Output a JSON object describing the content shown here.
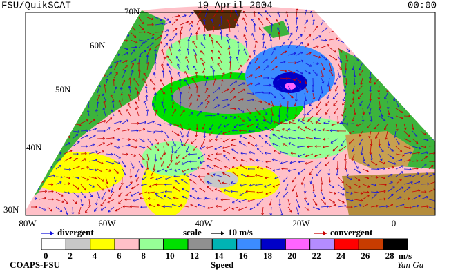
{
  "header": {
    "left": "FSU/QuikSCAT",
    "date": "19 April 2004",
    "time": "00:00"
  },
  "map": {
    "lat_labels": [
      "70N",
      "60N",
      "50N",
      "40N",
      "30N"
    ],
    "lon_labels": [
      "80W",
      "60W",
      "40W",
      "20W",
      "0"
    ]
  },
  "legend": {
    "divergent": "divergent",
    "scale": "scale",
    "scale_value": "10 m/s",
    "convergent": "convergent",
    "divergent_color": "#1414dc",
    "convergent_color": "#c80000"
  },
  "colorbar": {
    "ticks": [
      0,
      2,
      4,
      6,
      8,
      10,
      12,
      14,
      16,
      18,
      20,
      22,
      24,
      26,
      28
    ],
    "unit": "m/s",
    "colors": [
      "#ffffff",
      "#c8c8c8",
      "#ffff00",
      "#ffc0c8",
      "#96ff96",
      "#00e000",
      "#909090",
      "#00b4b4",
      "#3c8cff",
      "#0000c8",
      "#ff64ff",
      "#b48cff",
      "#ff0000",
      "#c83c00",
      "#000000"
    ],
    "label": "Speed"
  },
  "footer": {
    "left": "COAPS-FSU",
    "right": "Yan Gu"
  }
}
